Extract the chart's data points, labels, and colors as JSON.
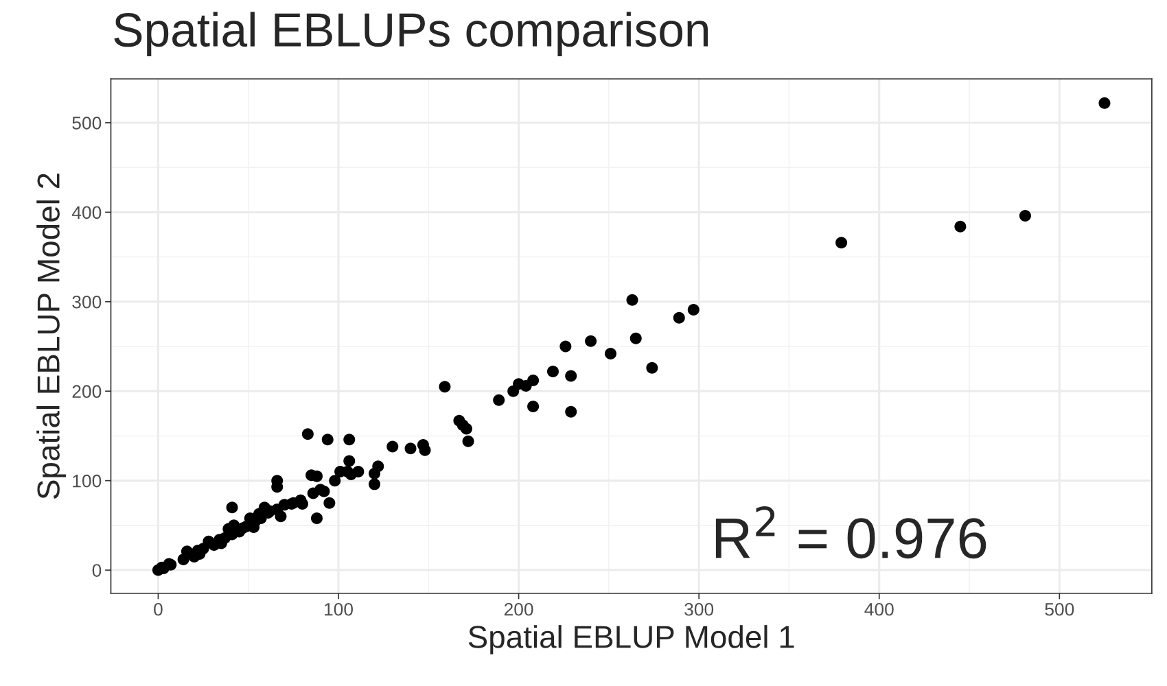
{
  "chart_data": {
    "type": "scatter",
    "title": "Spatial EBLUPs comparison",
    "xlabel": "Spatial EBLUP Model 1",
    "ylabel": "Spatial EBLUP Model 2",
    "annotations": [
      "R$^{2}$ = 0.976"
    ],
    "series": [
      {
        "color": "#000000",
        "x": [
          525,
          481,
          445,
          379,
          263,
          297,
          289,
          226,
          240,
          251,
          265,
          274,
          219,
          229,
          208,
          200,
          204,
          197,
          189,
          208,
          229,
          159,
          167,
          169,
          171,
          172,
          130,
          140,
          147,
          148,
          83,
          94,
          106,
          106,
          105,
          107,
          111,
          122,
          120,
          120,
          101,
          98,
          85,
          88,
          95,
          88,
          92,
          90,
          86,
          80,
          74,
          70,
          66,
          66,
          66,
          68,
          62,
          59,
          56,
          54,
          51,
          53,
          47,
          41,
          42,
          39,
          41,
          37,
          35,
          25,
          23,
          20,
          16,
          6,
          2,
          0,
          3,
          7,
          14,
          22,
          28,
          31,
          34,
          45,
          49,
          57,
          61,
          75,
          79
        ],
        "values": [
          522,
          396,
          384,
          366,
          302,
          291,
          282,
          250,
          256,
          242,
          259,
          226,
          222,
          217,
          212,
          208,
          206,
          200,
          190,
          183,
          177,
          205,
          167,
          162,
          158,
          144,
          138,
          136,
          140,
          134,
          152,
          146,
          146,
          122,
          110,
          107,
          110,
          116,
          108,
          96,
          110,
          100,
          106,
          105,
          75,
          58,
          88,
          90,
          86,
          74,
          74,
          73,
          68,
          93,
          100,
          60,
          66,
          70,
          63,
          55,
          58,
          48,
          47,
          70,
          50,
          46,
          40,
          36,
          30,
          24,
          18,
          15,
          21,
          7,
          3,
          0,
          2,
          6,
          12,
          22,
          32,
          28,
          34,
          43,
          49,
          58,
          64,
          75,
          78
        ]
      }
    ],
    "xlim": [
      -26.25,
      551.25
    ],
    "ylim": [
      -26,
      549
    ],
    "xticks": [
      0,
      100,
      200,
      300,
      400,
      500
    ],
    "yticks": [
      0,
      100,
      200,
      300,
      400,
      500
    ],
    "grid": true,
    "marker": "circle",
    "legend": false
  }
}
